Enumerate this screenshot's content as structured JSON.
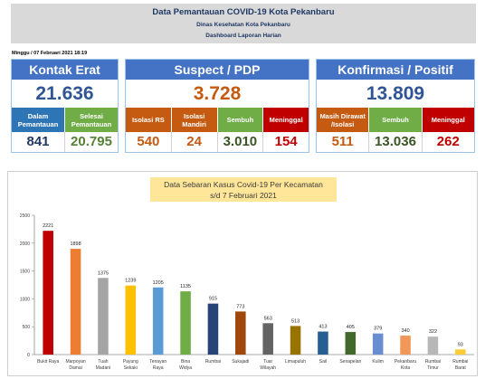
{
  "header": {
    "title": "Data Pemantauan COVID-19 Kota Pekanbaru",
    "subtitle": "Dinas Kesehatan Kota Pekanbaru",
    "report": "Dashboard Laporan Harian"
  },
  "date": "Minggu / 07 Februari 2021  18:19",
  "kontak": {
    "title": "Kontak Erat",
    "total": "21.636",
    "subs": [
      {
        "label": "Dalam Pemantauan",
        "value": "841",
        "bg": "#2e75b6",
        "color": "#1f3864"
      },
      {
        "label": "Selesai Pemantauan",
        "value": "20.795",
        "bg": "#70ad47",
        "color": "#548235"
      }
    ]
  },
  "suspect": {
    "title": "Suspect / PDP",
    "total": "3.728",
    "subs": [
      {
        "label": "Isolasi RS",
        "value": "540",
        "bg": "#c55a11",
        "color": "#c55a11"
      },
      {
        "label": "Isolasi Mandiri",
        "value": "24",
        "bg": "#c55a11",
        "color": "#c55a11"
      },
      {
        "label": "Sembuh",
        "value": "3.010",
        "bg": "#70ad47",
        "color": "#375623"
      },
      {
        "label": "Meninggal",
        "value": "154",
        "bg": "#c00000",
        "color": "#c00000"
      }
    ]
  },
  "konfirmasi": {
    "title": "Konfirmasi / Positif",
    "total": "13.809",
    "subs": [
      {
        "label": "Masih Dirawat /Isolasi",
        "value": "511",
        "bg": "#c55a11",
        "color": "#c55a11"
      },
      {
        "label": "Sembuh",
        "value": "13.036",
        "bg": "#70ad47",
        "color": "#375623"
      },
      {
        "label": "Meninggal",
        "value": "262",
        "bg": "#c00000",
        "color": "#c00000"
      }
    ]
  },
  "colors": {
    "card_title_bg": "#4472c4",
    "kontak_total": "#2f5597",
    "suspect_total": "#c55a11",
    "konfirmasi_total": "#2f5597"
  },
  "chart_data": {
    "type": "bar",
    "title": "Data Sebaran Kasus Covid-19 Per Kecamatan",
    "subtitle": "s/d 7 Februari 2021",
    "categories": [
      "Bukit Raya",
      "Marpoyan Damai",
      "Tuah Madani",
      "Payung Sekaki",
      "Tenayan Raya",
      "Bina Widya",
      "Rumbai",
      "Sukajadi",
      "Lima Puluh",
      "Tuah Karya",
      "Senapelan",
      "Sail",
      "Kulim",
      "Pekanbaru Kota",
      "Rumbai Timur",
      "Rumbai Barat"
    ],
    "tick_labels": [
      [
        "Bukit Raya",
        ""
      ],
      [
        "Marpoyan",
        "Damai"
      ],
      [
        "Tuah",
        "Madani"
      ],
      [
        "Payung",
        "Sekaki"
      ],
      [
        "Tenayan",
        "Raya"
      ],
      [
        "Bina",
        "Widya"
      ],
      [
        "Rumbai",
        ""
      ],
      [
        "Sukajadi",
        ""
      ],
      [
        "Tuar",
        "Wilayah"
      ],
      [
        "Limapuluh",
        ""
      ],
      [
        "Sail",
        ""
      ],
      [
        "Senapelan",
        ""
      ],
      [
        "Kulim",
        ""
      ],
      [
        "Pekanbaru",
        "Kota"
      ],
      [
        "Rumbai",
        "Timur"
      ],
      [
        "Rumbai",
        "Barat"
      ]
    ],
    "values": [
      2221,
      1898,
      1375,
      1239,
      1205,
      1135,
      915,
      773,
      563,
      513,
      413,
      405,
      379,
      340,
      322,
      93
    ],
    "colors": [
      "#c00000",
      "#ed7d31",
      "#a5a5a5",
      "#ffc000",
      "#5b9bd5",
      "#70ad47",
      "#264478",
      "#9e480e",
      "#636363",
      "#997300",
      "#255e91",
      "#43682b",
      "#698ed0",
      "#f1975a",
      "#b7b7b7",
      "#ffcd33"
    ],
    "ylim": [
      0,
      2500
    ],
    "yticks": [
      0,
      500,
      1000,
      1500,
      2000,
      2500
    ],
    "grid": false,
    "legend": "none"
  }
}
